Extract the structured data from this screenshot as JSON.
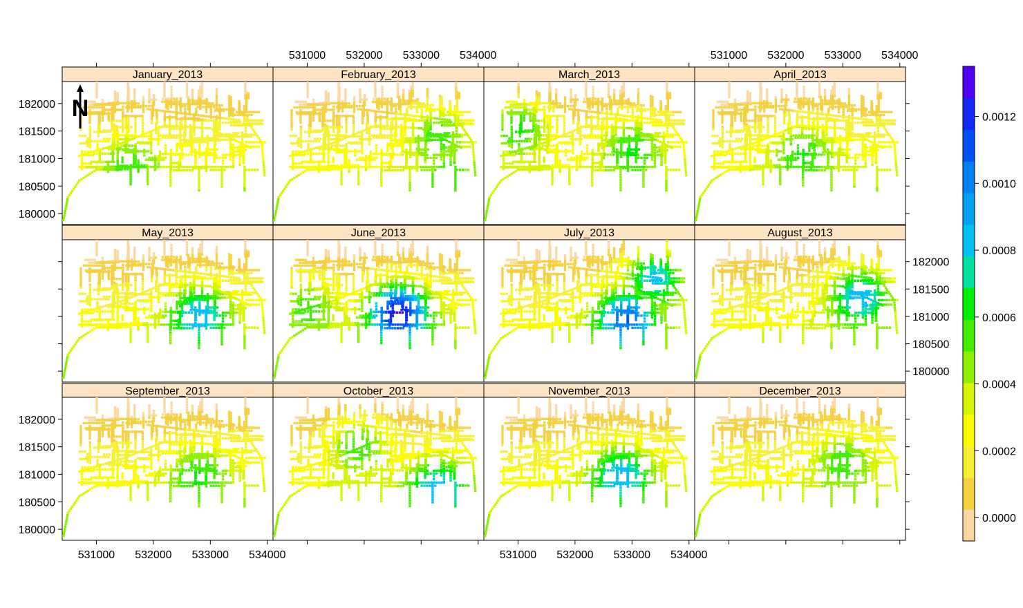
{
  "figure": {
    "panels": [
      {
        "title": "January_2013"
      },
      {
        "title": "February_2013"
      },
      {
        "title": "March_2013"
      },
      {
        "title": "April_2013"
      },
      {
        "title": "May_2013"
      },
      {
        "title": "June_2013"
      },
      {
        "title": "July_2013"
      },
      {
        "title": "August_2013"
      },
      {
        "title": "September_2013"
      },
      {
        "title": "October_2013"
      },
      {
        "title": "November_2013"
      },
      {
        "title": "December_2013"
      }
    ],
    "x_ticks": [
      "531000",
      "532000",
      "533000",
      "534000"
    ],
    "y_ticks": [
      "180000",
      "180500",
      "181000",
      "181500",
      "182000"
    ],
    "colorbar": {
      "labels": [
        "0.0000",
        "0.0002",
        "0.0004",
        "0.0006",
        "0.0008",
        "0.0010",
        "0.0012"
      ],
      "colors": [
        "#fbd8a2",
        "#f5d040",
        "#f5f032",
        "#fbfb00",
        "#d6f500",
        "#8ef000",
        "#42ee00",
        "#00ee00",
        "#00e0a0",
        "#00c0f5",
        "#00a0f5",
        "#0080f5",
        "#0050f0",
        "#1028f0",
        "#5000f0"
      ]
    },
    "north_arrow": {
      "label": "N"
    }
  },
  "chart_data": {
    "type": "heatmap",
    "panels": [
      "January_2013",
      "February_2013",
      "March_2013",
      "April_2013",
      "May_2013",
      "June_2013",
      "July_2013",
      "August_2013",
      "September_2013",
      "October_2013",
      "November_2013",
      "December_2013"
    ],
    "xlim": [
      530400,
      534100
    ],
    "ylim": [
      179800,
      182400
    ],
    "x_ticks": [
      531000,
      532000,
      533000,
      534000
    ],
    "y_ticks": [
      180000,
      180500,
      181000,
      181500,
      182000
    ],
    "color_range": [
      0,
      0.00135
    ],
    "colorbar_ticks": [
      0.0,
      0.0002,
      0.0004,
      0.0006,
      0.0008,
      0.001,
      0.0012
    ],
    "hotspots": [
      [
        {
          "x": 531600,
          "y": 180850,
          "v": 0.0006
        }
      ],
      [
        {
          "x": 533500,
          "y": 180650,
          "v": 0.0006
        },
        {
          "x": 533300,
          "y": 181400,
          "v": 0.0006
        }
      ],
      [
        {
          "x": 531000,
          "y": 181550,
          "v": 0.00065
        },
        {
          "x": 533000,
          "y": 181150,
          "v": 0.00065
        }
      ],
      [
        {
          "x": 532300,
          "y": 181050,
          "v": 0.00065
        }
      ],
      [
        {
          "x": 532800,
          "y": 181000,
          "v": 0.0009
        }
      ],
      [
        {
          "x": 532600,
          "y": 181050,
          "v": 0.00128
        },
        {
          "x": 531000,
          "y": 181150,
          "v": 0.0006
        }
      ],
      [
        {
          "x": 532900,
          "y": 180950,
          "v": 0.0011
        },
        {
          "x": 533400,
          "y": 181700,
          "v": 0.00085
        }
      ],
      [
        {
          "x": 533300,
          "y": 181350,
          "v": 0.0009
        }
      ],
      [
        {
          "x": 532800,
          "y": 180950,
          "v": 0.00065
        }
      ],
      [
        {
          "x": 531900,
          "y": 181500,
          "v": 0.0006
        },
        {
          "x": 533300,
          "y": 180700,
          "v": 0.0009
        }
      ],
      [
        {
          "x": 532800,
          "y": 180950,
          "v": 0.0009
        }
      ],
      [
        {
          "x": 533000,
          "y": 181200,
          "v": 0.0006
        }
      ]
    ]
  }
}
